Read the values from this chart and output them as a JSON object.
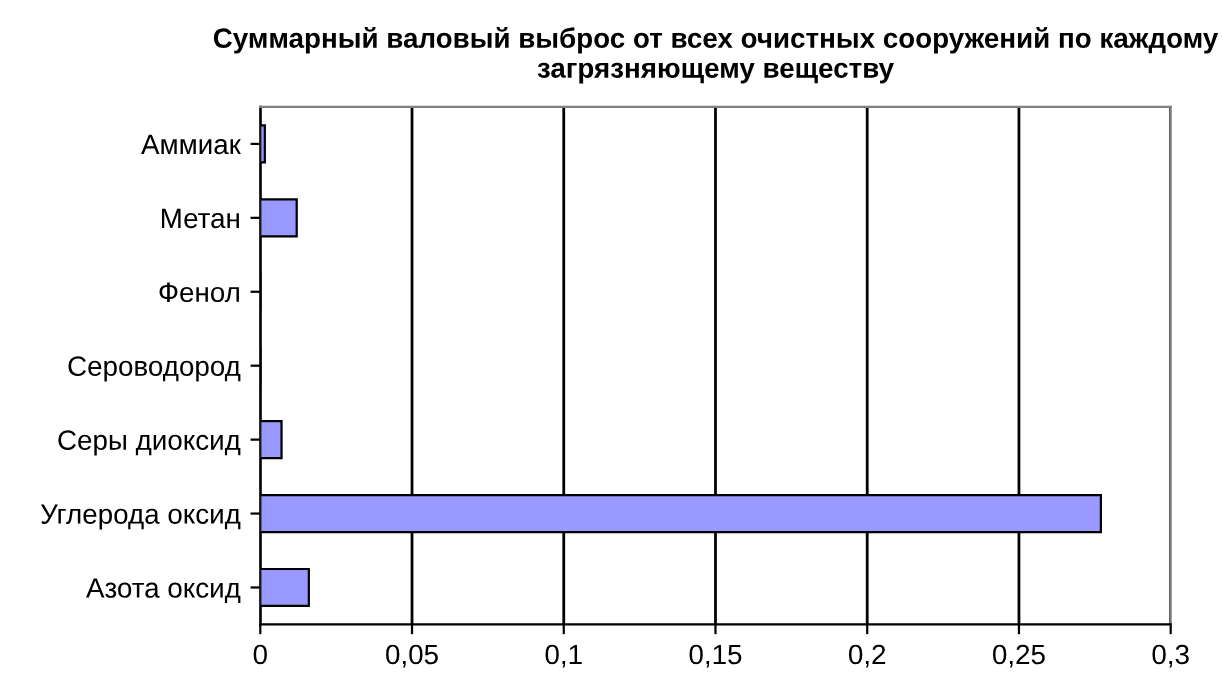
{
  "chart_data": {
    "type": "bar",
    "orientation": "horizontal",
    "title": "Суммарный валовый выброс от всех очистных сооружений по каждому загрязняющему веществу",
    "categories": [
      "Аммиак",
      "Метан",
      "Фенол",
      "Сероводород",
      "Серы диоксид",
      "Углерода оксид",
      "Азота оксид"
    ],
    "values": [
      0.0015,
      0.012,
      0,
      0,
      0.007,
      0.277,
      0.016
    ],
    "color": "#9999ff",
    "xlim": [
      0,
      0.3
    ],
    "xticks": [
      0,
      {
        "value": 0.05,
        "label": "0,05"
      },
      {
        "value": 0.1,
        "label": "0,1"
      },
      {
        "value": 0.15,
        "label": "0,15"
      },
      {
        "value": 0.2,
        "label": "0,2"
      },
      {
        "value": 0.25,
        "label": "0,25"
      },
      {
        "value": 0.3,
        "label": "0,3"
      }
    ],
    "grid": "x",
    "legend": false
  }
}
